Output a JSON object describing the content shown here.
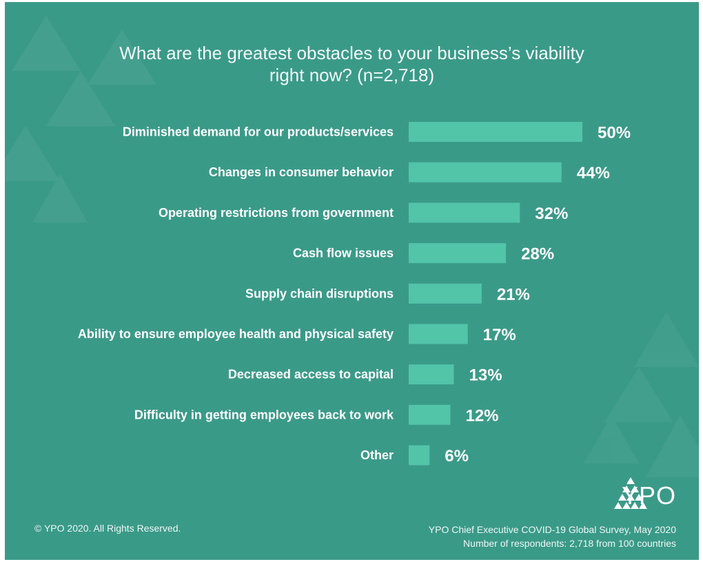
{
  "title_lines": [
    "What are the greatest obstacles to your business’s viability",
    "right now? (n=2,718)"
  ],
  "colors": {
    "background": "#3a9a88",
    "bar": "#52c4a8",
    "text": "#ffffff"
  },
  "chart_data": {
    "type": "bar",
    "orientation": "horizontal",
    "categories": [
      "Diminished demand for our products/services",
      "Changes in consumer behavior",
      "Operating restrictions from government",
      "Cash flow issues",
      "Supply chain disruptions",
      "Ability to ensure employee health and physical safety",
      "Decreased access to capital",
      "Difficulty in getting employees back to work",
      "Other"
    ],
    "values": [
      50,
      44,
      32,
      28,
      21,
      17,
      13,
      12,
      6
    ],
    "value_labels": [
      "50%",
      "44%",
      "32%",
      "28%",
      "21%",
      "17%",
      "13%",
      "12%",
      "6%"
    ],
    "xlim": [
      0,
      50
    ],
    "grid": false,
    "legend": "none"
  },
  "logo": {
    "text": "YPO",
    "icon": "ypo-triangle-icon"
  },
  "footer": {
    "copyright": "© YPO 2020. All Rights Reserved.",
    "source_line1": "YPO Chief Executive COVID-19 Global Survey, May 2020",
    "source_line2": "Number of respondents: 2,718 from 100 countries"
  }
}
